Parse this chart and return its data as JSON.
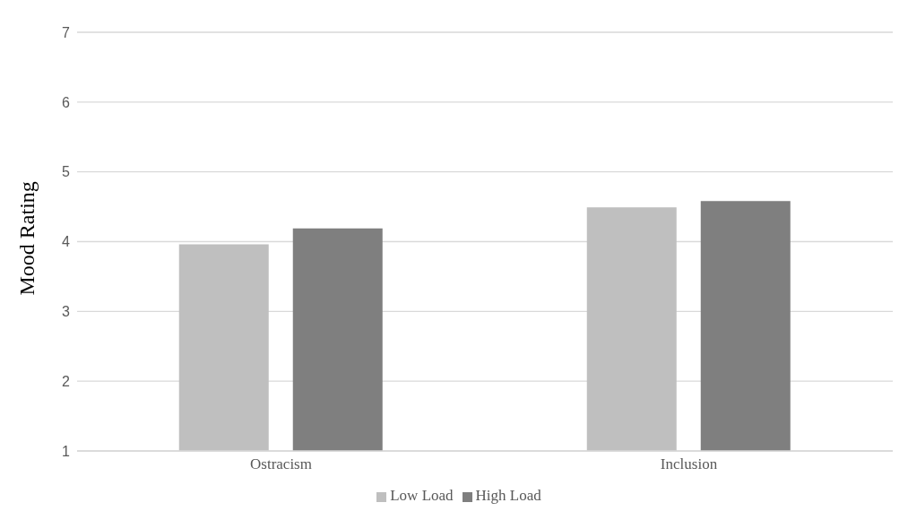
{
  "chart_data": {
    "type": "bar",
    "ylabel": "Mood Rating",
    "categories": [
      "Ostracism",
      "Inclusion"
    ],
    "series": [
      {
        "name": "Low Load",
        "color": "#bfbfbf",
        "values": [
          3.96,
          4.49
        ]
      },
      {
        "name": "High Load",
        "color": "#7f7f7f",
        "values": [
          4.19,
          4.58
        ]
      }
    ],
    "ylim": [
      1,
      7
    ],
    "yticks": [
      1,
      2,
      3,
      4,
      5,
      6,
      7
    ],
    "grid": "y",
    "legend": "bottom"
  }
}
